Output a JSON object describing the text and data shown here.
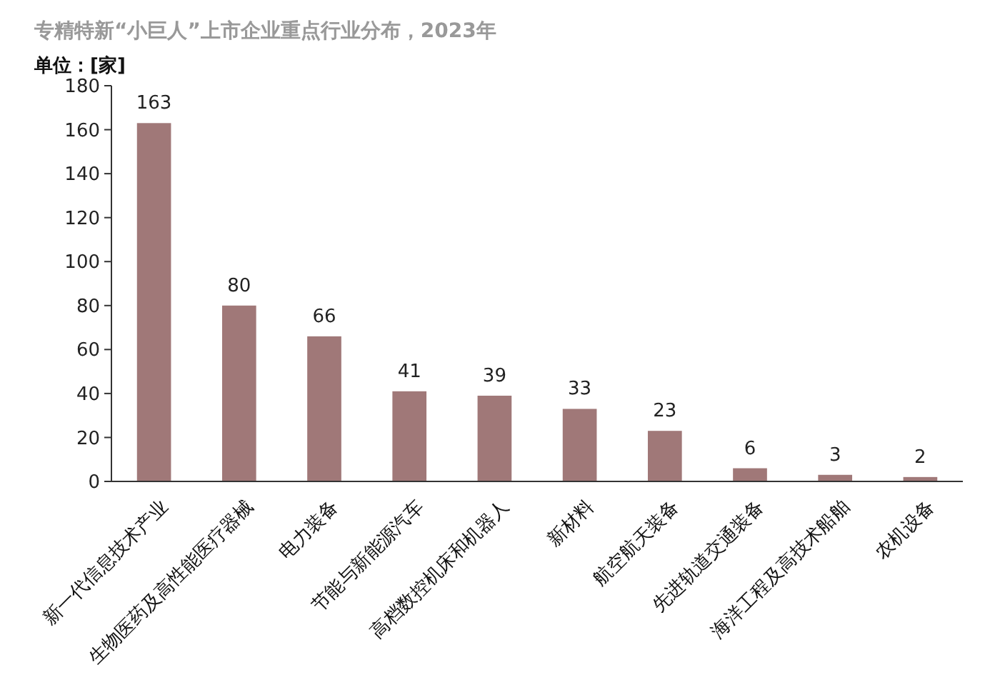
{
  "chart_data": {
    "type": "bar",
    "title": "专精特新“小巨人”上市企业重点行业分布，2023年",
    "ylabel": "单位：[家]",
    "categories": [
      "新一代信息技术产业",
      "生物医药及高性能医疗器械",
      "电力装备",
      "节能与新能源汽车",
      "高档数控机床和机器人",
      "新材料",
      "航空航天装备",
      "先进轨道交通装备",
      "海洋工程及高技术船舶",
      "农机设备"
    ],
    "values": [
      163,
      80,
      66,
      41,
      39,
      33,
      23,
      6,
      3,
      2
    ],
    "color": "#a07878",
    "data_labels": true,
    "ylim": [
      0,
      180
    ],
    "yticks": [
      0,
      20,
      40,
      60,
      80,
      100,
      120,
      140,
      160,
      180
    ],
    "grid": false
  }
}
